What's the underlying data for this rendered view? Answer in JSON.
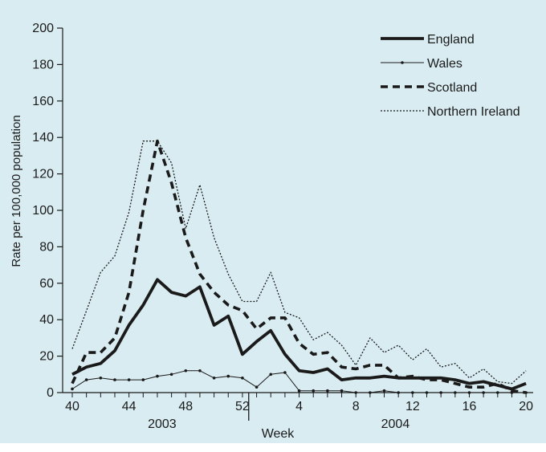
{
  "colors": {
    "background": "#d9ecf1",
    "ink": "#1a1a1a"
  },
  "chart_data": {
    "type": "line",
    "title": "",
    "xlabel": "Week",
    "ylabel": "Rate per 100,000 population",
    "ylim": [
      0,
      200
    ],
    "yticks": [
      0,
      20,
      40,
      60,
      80,
      100,
      120,
      140,
      160,
      180,
      200
    ],
    "x_tick_labels": [
      "40",
      "44",
      "48",
      "52",
      "4",
      "8",
      "12",
      "16",
      "20"
    ],
    "year_labels": [
      "2003",
      "2004"
    ],
    "x": [
      "40",
      "41",
      "42",
      "43",
      "44",
      "45",
      "46",
      "47",
      "48",
      "49",
      "50",
      "51",
      "52",
      "1",
      "2",
      "3",
      "4",
      "5",
      "6",
      "7",
      "8",
      "9",
      "10",
      "11",
      "12",
      "13",
      "14",
      "15",
      "16",
      "17",
      "18",
      "19",
      "20"
    ],
    "grid": false,
    "legend_position": "top-right",
    "series": [
      {
        "name": "England",
        "style": "thick-solid",
        "values": [
          10,
          14,
          16,
          23,
          37,
          48,
          62,
          55,
          53,
          58,
          37,
          42,
          21,
          28,
          34,
          21,
          12,
          11,
          13,
          7,
          8,
          8,
          9,
          8,
          8,
          8,
          8,
          7,
          5,
          6,
          4,
          2,
          5
        ]
      },
      {
        "name": "Wales",
        "style": "thin-solid-markers",
        "values": [
          2,
          7,
          8,
          7,
          7,
          7,
          9,
          10,
          12,
          12,
          8,
          9,
          8,
          3,
          10,
          11,
          1,
          1,
          1,
          1,
          0,
          0,
          1,
          0,
          0,
          0,
          0,
          0,
          0,
          0,
          0,
          0,
          0
        ]
      },
      {
        "name": "Scotland",
        "style": "thick-dashed",
        "values": [
          5,
          22,
          22,
          30,
          55,
          100,
          138,
          115,
          85,
          65,
          55,
          48,
          45,
          35,
          41,
          41,
          27,
          21,
          22,
          14,
          13,
          15,
          15,
          8,
          9,
          7,
          7,
          5,
          3,
          3,
          5,
          1,
          0
        ]
      },
      {
        "name": "Northern Ireland",
        "style": "dotted",
        "values": [
          24,
          45,
          66,
          75,
          99,
          138,
          138,
          126,
          90,
          114,
          85,
          65,
          50,
          50,
          66,
          44,
          41,
          29,
          33,
          26,
          15,
          30,
          22,
          26,
          18,
          24,
          14,
          16,
          8,
          13,
          6,
          5,
          12
        ]
      }
    ]
  }
}
